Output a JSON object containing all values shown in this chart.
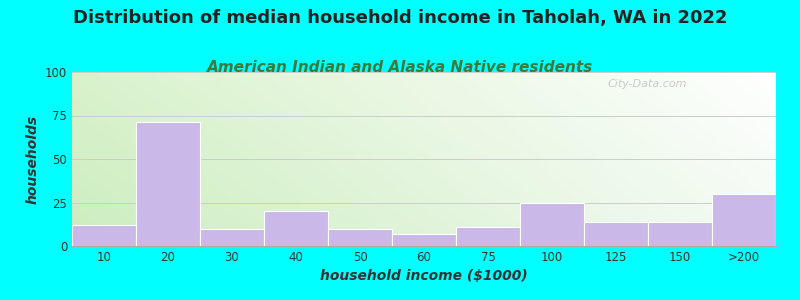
{
  "title": "Distribution of median household income in Taholah, WA in 2022",
  "subtitle": "American Indian and Alaska Native residents",
  "xlabel": "household income ($1000)",
  "ylabel": "households",
  "categories": [
    "10",
    "20",
    "30",
    "40",
    "50",
    "60",
    "75",
    "100",
    "125",
    "150",
    ">200"
  ],
  "values": [
    12,
    71,
    10,
    20,
    10,
    7,
    11,
    25,
    14,
    14,
    30
  ],
  "bar_color": "#c9b8e8",
  "bar_edge_color": "#c9b8e8",
  "ylim": [
    0,
    100
  ],
  "yticks": [
    0,
    25,
    50,
    75,
    100
  ],
  "background_outer": "#00ffff",
  "title_fontsize": 13,
  "title_color": "#222222",
  "subtitle_fontsize": 11,
  "subtitle_color": "#3a7a3a",
  "watermark": "City-Data.com",
  "grid_color": "#cccccc",
  "ylabel_fontsize": 10,
  "xlabel_fontsize": 10
}
